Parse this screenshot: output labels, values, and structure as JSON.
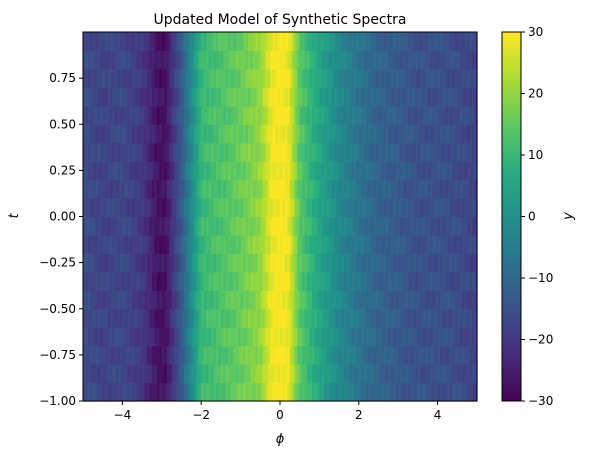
{
  "chart_data": {
    "type": "heatmap",
    "title": "Updated Model of Synthetic Spectra",
    "xlabel": "ϕ",
    "ylabel": "t",
    "colorbar_label": "y",
    "colormap": "viridis",
    "xlim": [
      -5,
      5
    ],
    "ylim": [
      -1,
      1
    ],
    "clim": [
      -30,
      30
    ],
    "x_ticks": [
      -4,
      -2,
      0,
      2,
      4
    ],
    "x_tick_labels": [
      "−4",
      "−2",
      "0",
      "2",
      "4"
    ],
    "y_ticks": [
      -1.0,
      -0.75,
      -0.5,
      -0.25,
      0.0,
      0.25,
      0.5,
      0.75
    ],
    "y_tick_labels": [
      "−1.00",
      "−0.75",
      "−0.50",
      "−0.25",
      "0.00",
      "0.25",
      "0.50",
      "0.75"
    ],
    "colorbar_ticks": [
      -30,
      -20,
      -10,
      0,
      10,
      20,
      30
    ],
    "colorbar_tick_labels": [
      "−30",
      "−20",
      "−10",
      "0",
      "10",
      "20",
      "30"
    ],
    "profile_phi": [
      -5.0,
      -4.5,
      -4.0,
      -3.5,
      -3.1,
      -2.9,
      -2.5,
      -2.0,
      -1.5,
      -1.0,
      -0.5,
      -0.2,
      0.0,
      0.2,
      0.5,
      1.0,
      1.5,
      2.0,
      2.5,
      3.0,
      3.5,
      4.0,
      4.5,
      5.0
    ],
    "profile_y": [
      -16,
      -18,
      -17,
      -20,
      -27,
      -27,
      -13,
      10,
      13,
      16,
      20,
      29,
      30,
      29,
      14,
      5,
      -2,
      -7,
      -11,
      -13,
      -15,
      -15,
      -16,
      -18
    ]
  }
}
